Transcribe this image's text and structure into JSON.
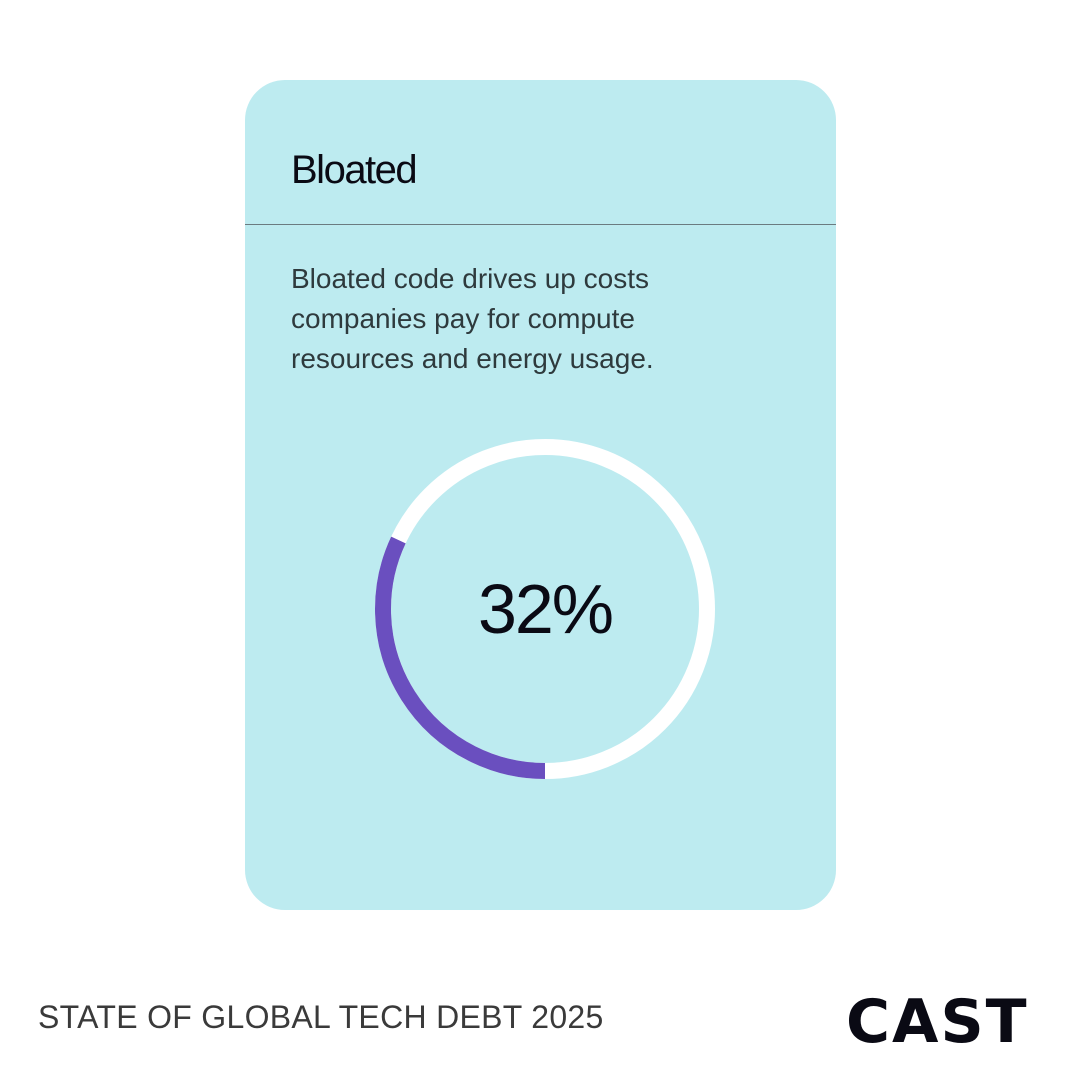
{
  "chart_data": {
    "type": "donut",
    "title": "Bloated",
    "subtitle": "Bloated code drives up costs companies pay for compute resources and energy usage.",
    "values": [
      32
    ],
    "value_labels": [
      "32%"
    ],
    "ylim": [
      0,
      100
    ],
    "color": "#6a4fbf",
    "track_color": "#ffffff",
    "background": "#bdebf0"
  },
  "footer": {
    "text": "STATE OF GLOBAL TECH DEBT 2025",
    "logo": "CAST"
  }
}
